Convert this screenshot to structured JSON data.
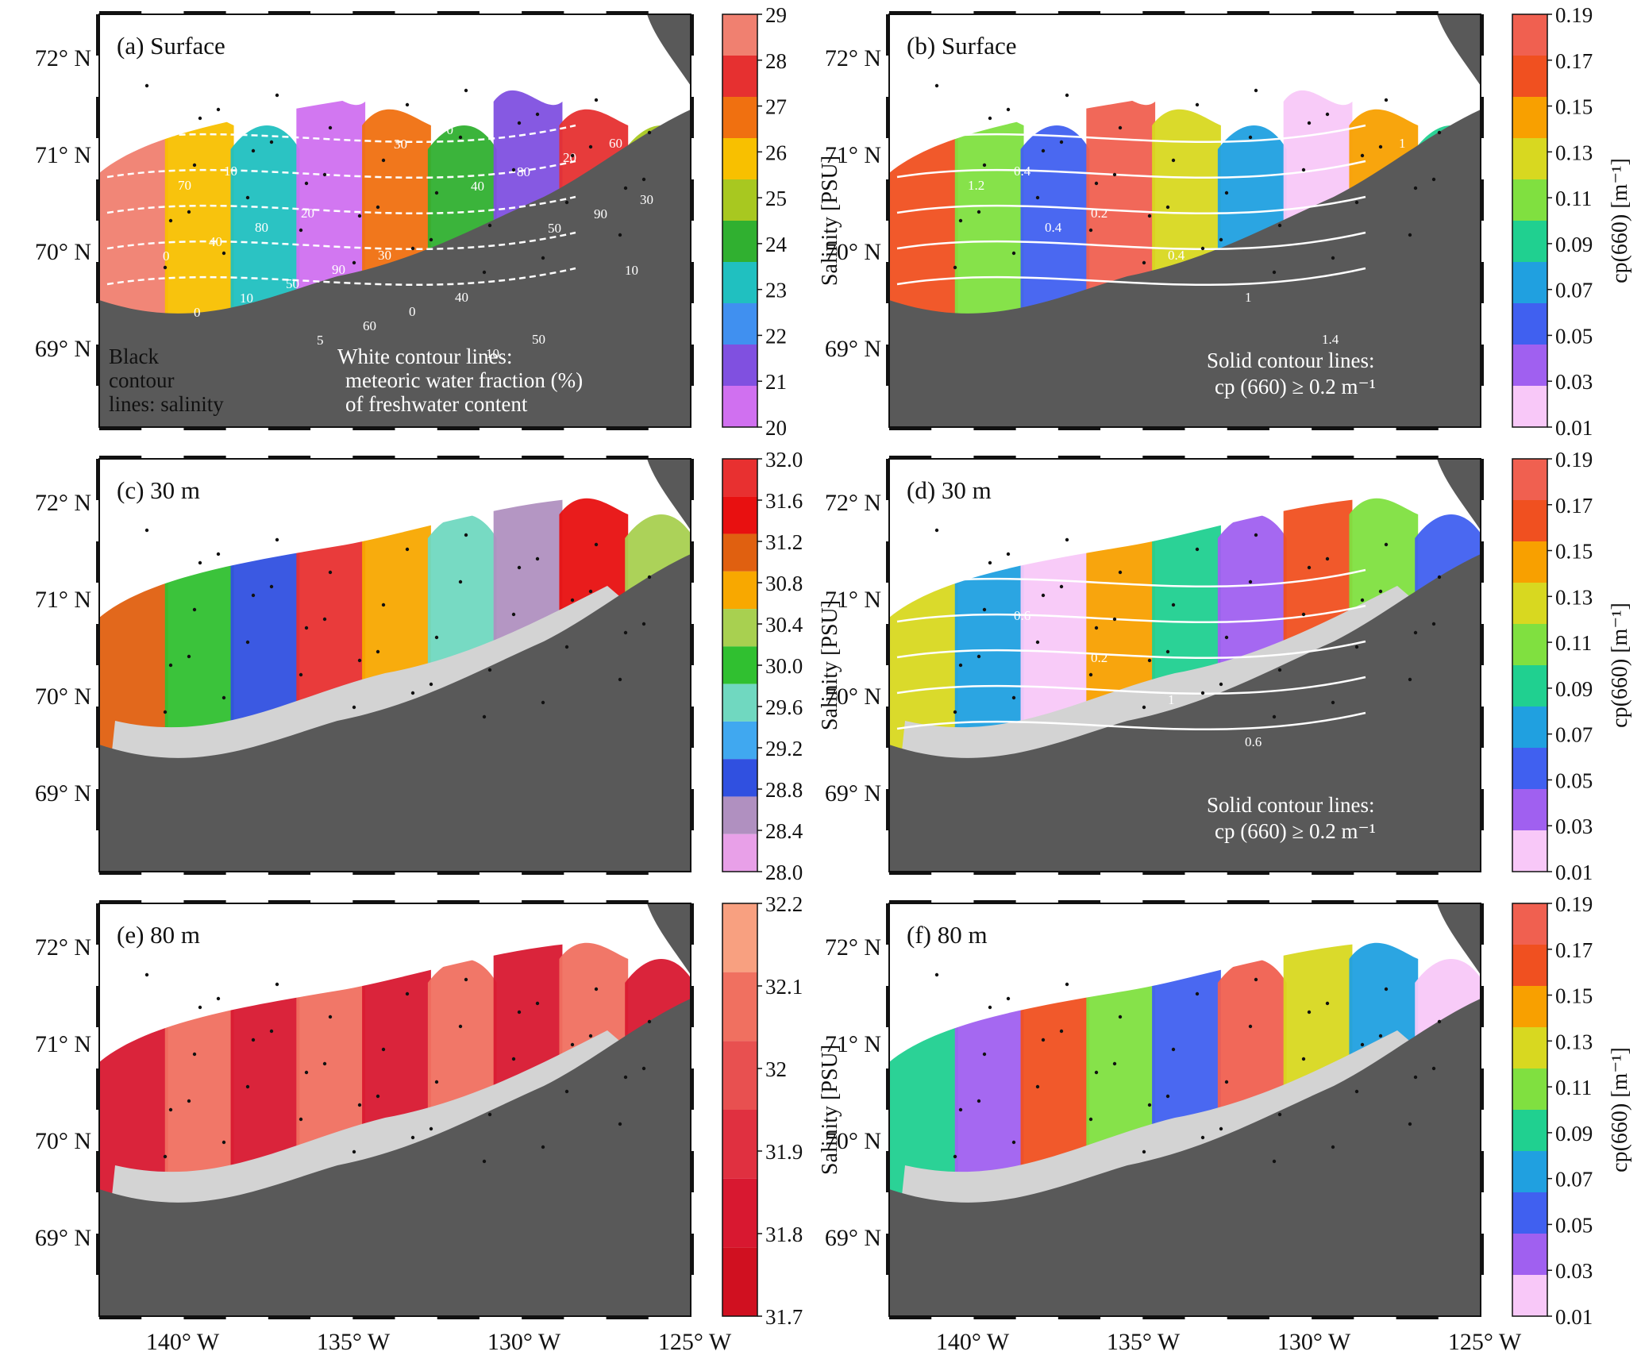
{
  "figure": {
    "panels": [
      {
        "id": "a",
        "title": "(a) Surface",
        "variable": "salinity",
        "colorbar": {
          "title": "Salinity [PSU]",
          "labels": [
            "29",
            "28",
            "27",
            "26",
            "25",
            "24",
            "23",
            "22",
            "21",
            "20"
          ],
          "colors": [
            "#f08070",
            "#e63030",
            "#f07010",
            "#f8c000",
            "#a8c820",
            "#30b030",
            "#20c0c0",
            "#4090f0",
            "#8050e0",
            "#d070f0"
          ]
        },
        "annotations": [
          "Black",
          "contour",
          "lines: salinity",
          "White contour lines:",
          "meteoric water fraction (%)",
          "of freshwater content"
        ],
        "contour_labels": [
          "1",
          "10",
          "20",
          "30",
          "40",
          "50",
          "60",
          "70",
          "80",
          "90",
          "0",
          "10",
          "20",
          "30",
          "40",
          "50",
          "60",
          "70",
          "80",
          "90",
          "0",
          "10",
          "5",
          "30",
          "40",
          "50",
          "10",
          "0"
        ]
      },
      {
        "id": "b",
        "title": "(b) Surface",
        "variable": "cp660",
        "colorbar": {
          "title": "cp(660) [m⁻¹]",
          "labels": [
            "0.19",
            "0.17",
            "0.15",
            "0.13",
            "0.11",
            "0.09",
            "0.07",
            "0.05",
            "0.03",
            "0.01"
          ],
          "colors": [
            "#f06050",
            "#f05020",
            "#f8a000",
            "#d8d820",
            "#80e040",
            "#20d090",
            "#20a0e0",
            "#4060f0",
            "#a060f0",
            "#f8c8f8"
          ]
        },
        "annotations": [
          "Solid contour lines:",
          "cp (660) ≥ 0.2 m⁻¹"
        ],
        "contour_labels": [
          "0.2",
          "0.4",
          "0.2",
          "0.4",
          "1",
          "1.4",
          "1",
          "1.2",
          "0.4"
        ]
      },
      {
        "id": "c",
        "title": "(c) 30 m",
        "variable": "salinity",
        "colorbar": {
          "title": "Salinity [PSU]",
          "labels": [
            "32.0",
            "31.6",
            "31.2",
            "30.8",
            "30.4",
            "30.0",
            "29.6",
            "29.2",
            "28.8",
            "28.4",
            "28.0"
          ],
          "colors": [
            "#e83030",
            "#e81010",
            "#e06010",
            "#f8a800",
            "#a8d050",
            "#30c030",
            "#70d8c0",
            "#40a8f0",
            "#3050e0",
            "#b090c0",
            "#e8a0e8"
          ]
        },
        "annotations": [],
        "contour_labels": []
      },
      {
        "id": "d",
        "title": "(d) 30 m",
        "variable": "cp660",
        "colorbar": {
          "title": "cp(660) [m⁻¹]",
          "labels": [
            "0.19",
            "0.17",
            "0.15",
            "0.13",
            "0.11",
            "0.09",
            "0.07",
            "0.05",
            "0.03",
            "0.01"
          ],
          "colors": [
            "#f06050",
            "#f05020",
            "#f8a000",
            "#d8d820",
            "#80e040",
            "#20d090",
            "#20a0e0",
            "#4060f0",
            "#a060f0",
            "#f8c8f8"
          ]
        },
        "annotations": [
          "Solid contour lines:",
          "cp (660) ≥ 0.2 m⁻¹"
        ],
        "contour_labels": [
          "0.2",
          "0.6",
          "0.2",
          "1",
          "0.6"
        ]
      },
      {
        "id": "e",
        "title": "(e) 80 m",
        "variable": "salinity",
        "colorbar": {
          "title": "Salinity [PSU]",
          "labels": [
            "32.2",
            "32.1",
            "32",
            "31.9",
            "31.8",
            "31.7"
          ],
          "colors": [
            "#f8a080",
            "#f07060",
            "#e85050",
            "#e03040",
            "#d81830",
            "#d01020"
          ]
        },
        "annotations": [],
        "contour_labels": []
      },
      {
        "id": "f",
        "title": "(f) 80 m",
        "variable": "cp660",
        "colorbar": {
          "title": "cp(660) [m⁻¹]",
          "labels": [
            "0.19",
            "0.17",
            "0.15",
            "0.13",
            "0.11",
            "0.09",
            "0.07",
            "0.05",
            "0.03",
            "0.01"
          ],
          "colors": [
            "#f06050",
            "#f05020",
            "#f8a000",
            "#d8d820",
            "#80e040",
            "#20d090",
            "#20a0e0",
            "#4060f0",
            "#a060f0",
            "#f8c8f8"
          ]
        },
        "annotations": [],
        "contour_labels": []
      }
    ],
    "lat_labels": [
      "72° N",
      "71° N",
      "70° N",
      "69° N"
    ],
    "lon_labels": [
      "140° W",
      "135° W",
      "130° W",
      "125° W"
    ],
    "land_color": "#595959",
    "shelf_color": "#d3d3d3"
  }
}
